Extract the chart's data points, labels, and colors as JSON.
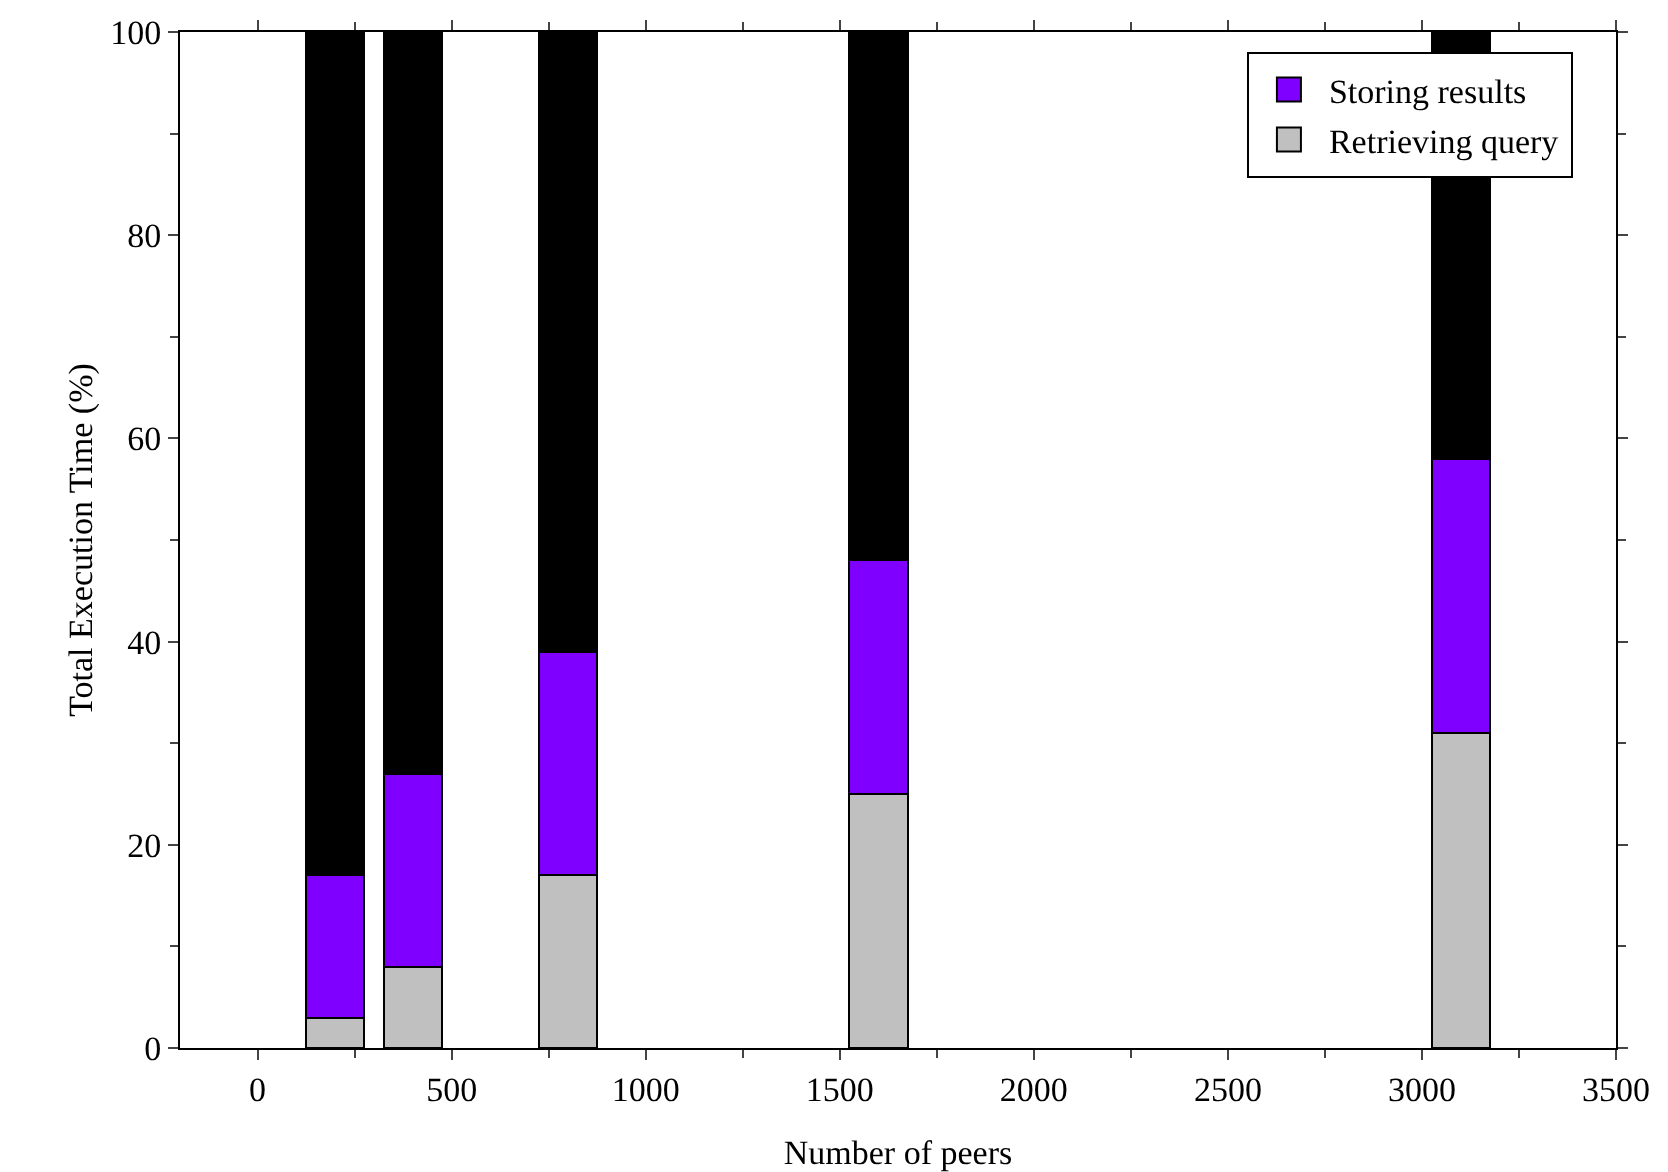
{
  "chart_data": {
    "type": "bar",
    "stacked": true,
    "xlabel": "Number of peers",
    "ylabel": "Total Execution Time (%)",
    "x": [
      200,
      400,
      800,
      1600,
      3100
    ],
    "series": [
      {
        "name": "Retrieving query",
        "color": "#c0c0c0",
        "values": [
          3,
          8,
          17,
          25,
          31
        ]
      },
      {
        "name": "Storing results",
        "color": "#7f00ff",
        "values": [
          14,
          19,
          22,
          23,
          27
        ]
      },
      {
        "color": "#000000",
        "values": [
          83,
          73,
          61,
          52,
          42
        ]
      }
    ],
    "xlim": [
      -200,
      3500
    ],
    "xticks": [
      0,
      500,
      1000,
      1500,
      2000,
      2500,
      3000,
      3500
    ],
    "ylim": [
      0,
      100
    ],
    "yticks": [
      0,
      20,
      40,
      60,
      80,
      100
    ],
    "legend": "top right",
    "grid": false
  }
}
